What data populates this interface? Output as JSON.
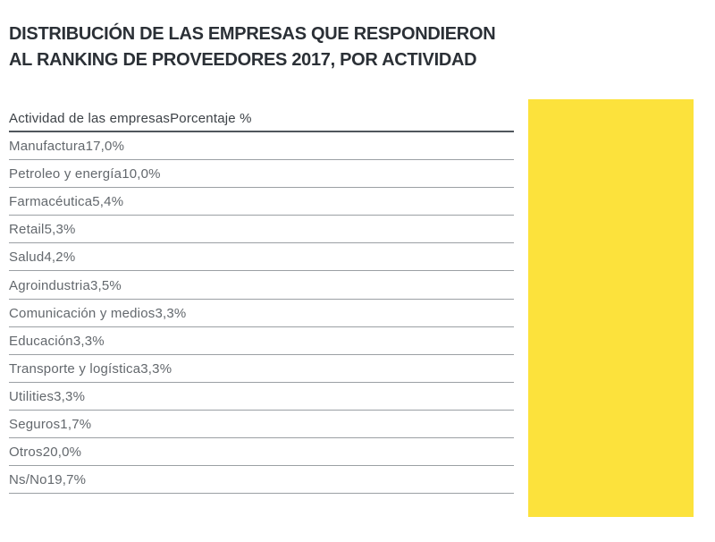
{
  "title": {
    "line1": "DISTRIBUCIÓN DE LAS EMPRESAS QUE RESPONDIERON",
    "line2": "AL RANKING DE PROVEEDORES 2017, POR ACTIVIDAD"
  },
  "table": {
    "header": {
      "col1": "Actividad de las empresas",
      "col2": "Porcentaje %"
    },
    "rows": [
      {
        "label": "Manufactura",
        "value": "17,0%"
      },
      {
        "label": "Petroleo y energía",
        "value": "10,0%"
      },
      {
        "label": "Farmacéutica",
        "value": "5,4%"
      },
      {
        "label": "Retail",
        "value": "5,3%"
      },
      {
        "label": "Salud",
        "value": "4,2%"
      },
      {
        "label": "Agroindustria",
        "value": "3,5%"
      },
      {
        "label": "Comunicación y medios",
        "value": "3,3%"
      },
      {
        "label": "Educación",
        "value": "3,3%"
      },
      {
        "label": "Transporte y logística",
        "value": "3,3%"
      },
      {
        "label": "Utilities",
        "value": "3,3%"
      },
      {
        "label": "Seguros",
        "value": "1,7%"
      },
      {
        "label": "Otros",
        "value": "20,0%"
      },
      {
        "label": "Ns/No",
        "value": "19,7%"
      }
    ]
  },
  "colors": {
    "accent_yellow": "#FCE23C",
    "title_text": "#2b3036",
    "header_text": "#3d4247",
    "row_text": "#63686d",
    "header_rule": "#50565c",
    "row_rule": "#9ba0a4"
  }
}
